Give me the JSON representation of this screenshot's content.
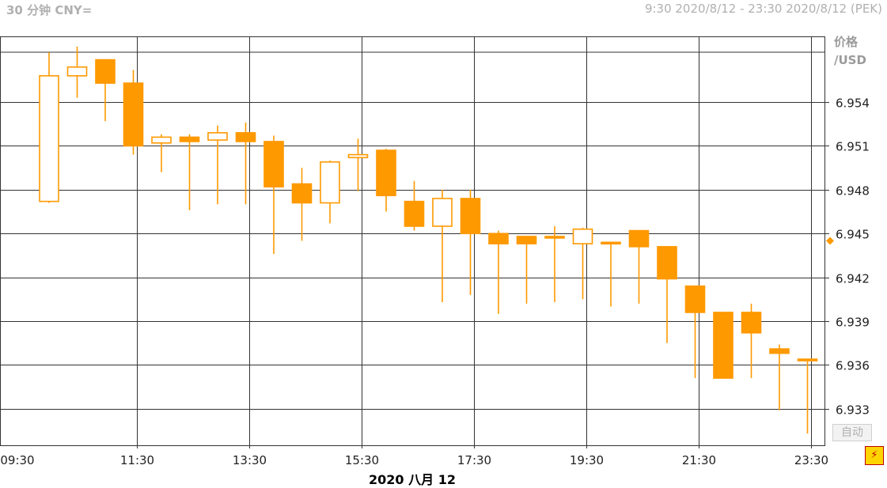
{
  "header": {
    "title": "30 分钟 CNY=",
    "range": "9:30 2020/8/12 - 23:30 2020/8/12 (PEK)"
  },
  "axis_panel": {
    "unit_line1": "价格",
    "unit_line2": "/USD",
    "auto_label": "自动"
  },
  "date_label": "2020 八月 12",
  "colors": {
    "candle": "#ff9900",
    "grid": "#333333",
    "axis_text": "#222222",
    "marker": "#ff9900"
  },
  "chart_data": {
    "type": "candlestick",
    "title": "30 分钟 CNY=",
    "xlabel": "2020 八月 12",
    "ylabel": "价格 /USD",
    "ylim": [
      6.9305,
      6.9585
    ],
    "yticks": [
      6.954,
      6.951,
      6.948,
      6.945,
      6.942,
      6.939,
      6.936,
      6.933
    ],
    "xtick_labels": [
      "09:30",
      "11:30",
      "13:30",
      "15:30",
      "17:30",
      "19:30",
      "21:30",
      "23:30"
    ],
    "last_price_marker": 6.9445,
    "grid": true,
    "candles": [
      {
        "time": "09:30",
        "open": 6.9472,
        "high": 6.9574,
        "low": 6.9471,
        "close": 6.9558
      },
      {
        "time": "10:00",
        "open": 6.9558,
        "high": 6.9578,
        "low": 6.9543,
        "close": 6.9564
      },
      {
        "time": "10:30",
        "open": 6.9569,
        "high": 6.9569,
        "low": 6.9527,
        "close": 6.9553
      },
      {
        "time": "11:00",
        "open": 6.9553,
        "high": 6.9562,
        "low": 6.9504,
        "close": 6.951
      },
      {
        "time": "11:30",
        "open": 6.9512,
        "high": 6.9518,
        "low": 6.9492,
        "close": 6.9516
      },
      {
        "time": "12:00",
        "open": 6.9516,
        "high": 6.9518,
        "low": 6.9466,
        "close": 6.9513
      },
      {
        "time": "12:30",
        "open": 6.9514,
        "high": 6.9524,
        "low": 6.947,
        "close": 6.9519
      },
      {
        "time": "13:00",
        "open": 6.9519,
        "high": 6.9526,
        "low": 6.947,
        "close": 6.9513
      },
      {
        "time": "13:30",
        "open": 6.9513,
        "high": 6.9517,
        "low": 6.9436,
        "close": 6.9482
      },
      {
        "time": "14:00",
        "open": 6.9484,
        "high": 6.9495,
        "low": 6.9445,
        "close": 6.9471
      },
      {
        "time": "14:30",
        "open": 6.9471,
        "high": 6.95,
        "low": 6.9457,
        "close": 6.9499
      },
      {
        "time": "15:00",
        "open": 6.9502,
        "high": 6.9515,
        "low": 6.9479,
        "close": 6.9504
      },
      {
        "time": "15:30",
        "open": 6.9507,
        "high": 6.9508,
        "low": 6.9465,
        "close": 6.9476
      },
      {
        "time": "16:00",
        "open": 6.9472,
        "high": 6.9486,
        "low": 6.9452,
        "close": 6.9455
      },
      {
        "time": "16:30",
        "open": 6.9455,
        "high": 6.948,
        "low": 6.9403,
        "close": 6.9474
      },
      {
        "time": "17:00",
        "open": 6.9474,
        "high": 6.948,
        "low": 6.9408,
        "close": 6.945
      },
      {
        "time": "17:30",
        "open": 6.945,
        "high": 6.9452,
        "low": 6.9395,
        "close": 6.9443
      },
      {
        "time": "18:00",
        "open": 6.9448,
        "high": 6.9448,
        "low": 6.9402,
        "close": 6.9443
      },
      {
        "time": "18:30",
        "open": 6.9448,
        "high": 6.9455,
        "low": 6.9403,
        "close": 6.9448
      },
      {
        "time": "19:00",
        "open": 6.9443,
        "high": 6.9454,
        "low": 6.9405,
        "close": 6.9453
      },
      {
        "time": "19:30",
        "open": 6.9444,
        "high": 6.9444,
        "low": 6.94,
        "close": 6.9444
      },
      {
        "time": "20:00",
        "open": 6.9452,
        "high": 6.9452,
        "low": 6.9402,
        "close": 6.9441
      },
      {
        "time": "20:30",
        "open": 6.9441,
        "high": 6.9441,
        "low": 6.9375,
        "close": 6.9419
      },
      {
        "time": "21:00",
        "open": 6.9414,
        "high": 6.9414,
        "low": 6.9351,
        "close": 6.9396
      },
      {
        "time": "21:30",
        "open": 6.9396,
        "high": 6.9396,
        "low": 6.9351,
        "close": 6.9351
      },
      {
        "time": "22:00",
        "open": 6.9396,
        "high": 6.9402,
        "low": 6.9351,
        "close": 6.9382
      },
      {
        "time": "22:30",
        "open": 6.9371,
        "high": 6.9374,
        "low": 6.9329,
        "close": 6.9368
      },
      {
        "time": "23:00",
        "open": 6.9364,
        "high": 6.9364,
        "low": 6.9313,
        "close": 6.9363
      }
    ]
  }
}
